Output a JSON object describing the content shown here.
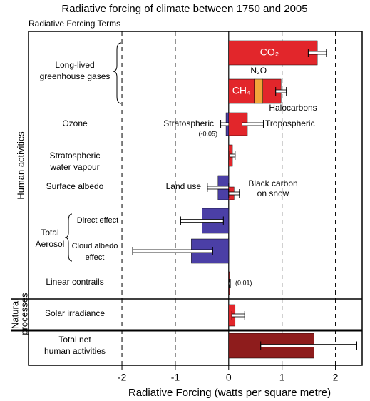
{
  "chart_data": {
    "type": "bar",
    "orientation": "horizontal",
    "title": "Radiative forcing of climate between 1750 and 2005",
    "subtitle": "Radiative Forcing Terms",
    "x_label": "Radiative Forcing  (watts per square metre)",
    "xlim": [
      -3.75,
      2.5
    ],
    "xticks": [
      -2,
      -1,
      0,
      1,
      2
    ],
    "grid": true,
    "groups": [
      "Human activities",
      [
        "Natural",
        "processes"
      ]
    ],
    "categories": [
      [
        "Long-lived",
        "greenhouse gases"
      ],
      [
        "Ozone"
      ],
      [
        "Stratospheric",
        "water vapour"
      ],
      [
        "Surface albedo"
      ],
      [
        "Direct effect"
      ],
      [
        "Cloud albedo",
        "effect"
      ],
      [
        "Total",
        "Aerosol"
      ],
      [
        "Linear contrails"
      ],
      [
        "Solar irradiance"
      ],
      [
        "Total net",
        "human activities"
      ]
    ],
    "bars": [
      {
        "name": "CO₂",
        "value": 1.66,
        "low": 1.49,
        "high": 1.83,
        "color": "#e2262b"
      },
      {
        "name": "CH₄",
        "value": 0.48,
        "color": "#e2262b"
      },
      {
        "name": "N₂O",
        "value": 0.16,
        "color": "#f2a53a"
      },
      {
        "name": "Halocarbons",
        "value": 0.34,
        "low": 0.88,
        "high": 1.08,
        "color": "#e2262b"
      },
      {
        "name": "Stratospheric",
        "value": -0.05,
        "low": -0.15,
        "high": 0.05,
        "color": "#4b3fa6",
        "value_label": "(-0.05)"
      },
      {
        "name": "Tropospheric",
        "value": 0.35,
        "low": 0.25,
        "high": 0.65,
        "color": "#e2262b"
      },
      {
        "value": 0.07,
        "low": 0.02,
        "high": 0.12,
        "color": "#e2262b"
      },
      {
        "name": "Land use",
        "value": -0.2,
        "low": -0.4,
        "high": 0.0,
        "color": "#4b3fa6"
      },
      {
        "name": [
          "Black carbon",
          "on snow"
        ],
        "value": 0.1,
        "low": 0.0,
        "high": 0.2,
        "color": "#e2262b"
      },
      {
        "value": -0.5,
        "low": -0.9,
        "high": -0.1,
        "color": "#4b3fa6"
      },
      {
        "value": -0.7,
        "low": -1.8,
        "high": -0.3,
        "color": "#4b3fa6"
      },
      {
        "value": 0.01,
        "low": 0.003,
        "high": 0.03,
        "color": "#e2262b",
        "value_label": "(0.01)"
      },
      {
        "value": 0.12,
        "low": 0.06,
        "high": 0.3,
        "color": "#e2262b"
      },
      {
        "value": 1.6,
        "low": 0.6,
        "high": 2.4,
        "color": "#8e1c1c"
      }
    ]
  }
}
